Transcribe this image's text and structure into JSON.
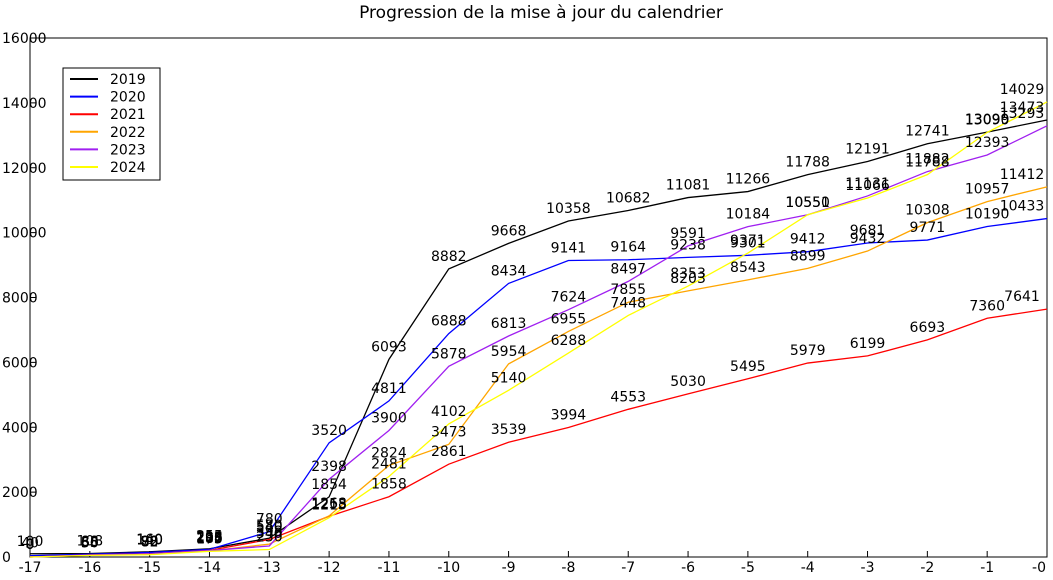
{
  "chart_data": {
    "type": "line",
    "title": "Progression de la mise à jour du calendrier",
    "x": [
      -17,
      -16,
      -15,
      -14,
      -13,
      -12,
      -11,
      -10,
      -9,
      -8,
      -7,
      -6,
      -5,
      -4,
      -3,
      -2,
      -1,
      0
    ],
    "xlim": [
      -17,
      0
    ],
    "xticks": [
      -17,
      -16,
      -15,
      -14,
      -13,
      -12,
      -11,
      -10,
      -9,
      -8,
      -7,
      -6,
      -5,
      -4,
      -3,
      -2,
      -1,
      {
        "value": 0,
        "label": "-0"
      }
    ],
    "ylim": [
      0,
      16000
    ],
    "yticks": [
      0,
      2000,
      4000,
      6000,
      8000,
      10000,
      12000,
      14000,
      16000
    ],
    "grid": false,
    "legend": "upper-left",
    "series": [
      {
        "name": "2019",
        "color": "#000000",
        "values": [
          100,
          108,
          160,
          255,
          580,
          1854,
          6093,
          8882,
          9668,
          10358,
          10682,
          11081,
          11266,
          11788,
          12191,
          12741,
          13099,
          13473
        ]
      },
      {
        "name": "2020",
        "color": "#0000ff",
        "values": [
          40,
          88,
          140,
          236,
          780,
          3520,
          4811,
          6888,
          8434,
          9141,
          9164,
          9238,
          9301,
          9412,
          9681,
          9771,
          10190,
          10433
        ]
      },
      {
        "name": "2021",
        "color": "#ff0000",
        "values": [
          0,
          65,
          98,
          205,
          540,
          1255,
          1858,
          2861,
          3539,
          3994,
          4553,
          5030,
          5495,
          5979,
          6199,
          6693,
          7360,
          7641
        ]
      },
      {
        "name": "2022",
        "color": "#ffa500",
        "values": [
          0,
          55,
          80,
          187,
          398,
          1268,
          2824,
          3473,
          5954,
          6955,
          7855,
          8203,
          8543,
          8899,
          9432,
          10308,
          10957,
          11412
        ]
      },
      {
        "name": "2023",
        "color": "#a020f0",
        "values": [
          0,
          60,
          90,
          198,
          340,
          2398,
          3900,
          5878,
          6813,
          7624,
          8497,
          9591,
          10184,
          10550,
          11131,
          11882,
          12393,
          13293
        ]
      },
      {
        "name": "2024",
        "color": "#ffff00",
        "values": [
          0,
          50,
          72,
          175,
          230,
          1213,
          2481,
          4102,
          5140,
          6288,
          7448,
          8353,
          9371,
          10551,
          11066,
          11788,
          13090,
          14029
        ]
      }
    ]
  }
}
